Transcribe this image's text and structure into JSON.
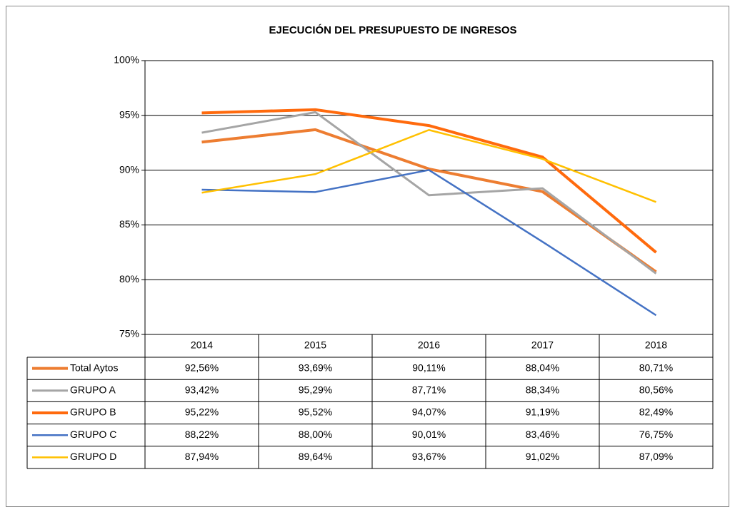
{
  "chart_data": {
    "type": "line",
    "title": "EJECUCIÓN DEL PRESUPUESTO DE INGRESOS",
    "categories": [
      "2014",
      "2015",
      "2016",
      "2017",
      "2018"
    ],
    "ylim": [
      75,
      100
    ],
    "yticks": [
      {
        "value": 75,
        "label": "75%"
      },
      {
        "value": 80,
        "label": "80%"
      },
      {
        "value": 85,
        "label": "85%"
      },
      {
        "value": 90,
        "label": "90%"
      },
      {
        "value": 95,
        "label": "95%"
      },
      {
        "value": 100,
        "label": "100%"
      }
    ],
    "grid": true,
    "series": [
      {
        "name": "Total Aytos",
        "color": "#ED7D31",
        "values": [
          92.56,
          93.69,
          90.11,
          88.04,
          80.71
        ],
        "value_labels": [
          "92,56%",
          "93,69%",
          "90,11%",
          "88,04%",
          "80,71%"
        ]
      },
      {
        "name": "GRUPO A",
        "color": "#A5A5A5",
        "values": [
          93.42,
          95.29,
          87.71,
          88.34,
          80.56
        ],
        "value_labels": [
          "93,42%",
          "95,29%",
          "87,71%",
          "88,34%",
          "80,56%"
        ]
      },
      {
        "name": "GRUPO B",
        "color": "#FF6A0D",
        "values": [
          95.22,
          95.52,
          94.07,
          91.19,
          82.49
        ],
        "value_labels": [
          "95,22%",
          "95,52%",
          "94,07%",
          "91,19%",
          "82,49%"
        ]
      },
      {
        "name": "GRUPO C",
        "color": "#4472C4",
        "values": [
          88.22,
          88.0,
          90.01,
          83.46,
          76.75
        ],
        "value_labels": [
          "88,22%",
          "88,00%",
          "90,01%",
          "83,46%",
          "76,75%"
        ]
      },
      {
        "name": "GRUPO D",
        "color": "#FFC000",
        "values": [
          87.94,
          89.64,
          93.67,
          91.02,
          87.09
        ],
        "value_labels": [
          "87,94%",
          "89,64%",
          "93,67%",
          "91,02%",
          "87,09%"
        ]
      }
    ]
  }
}
